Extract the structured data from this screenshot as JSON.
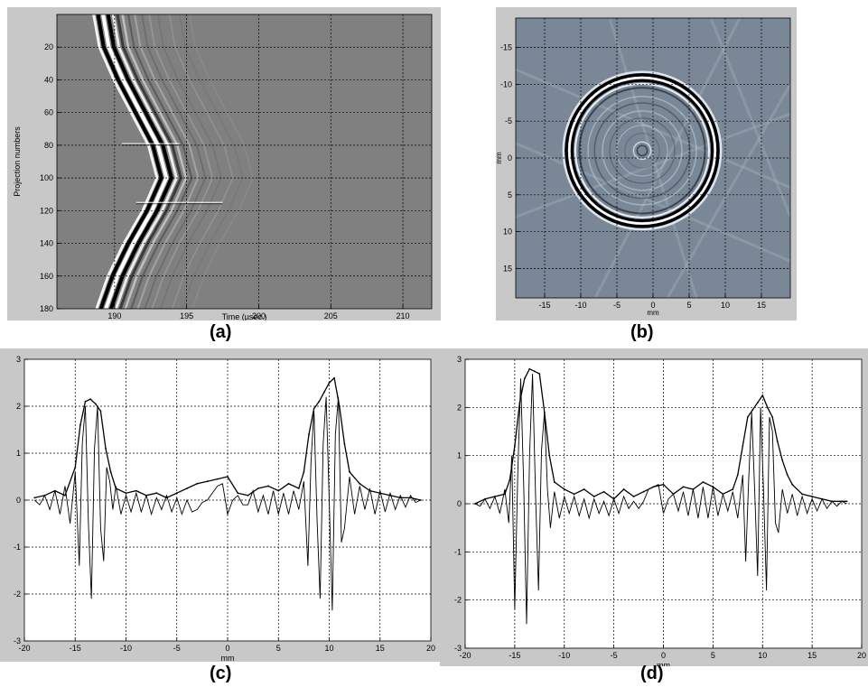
{
  "captions": {
    "a": "(a)",
    "b": "(b)",
    "c": "(c)",
    "d": "(d)"
  },
  "colors": {
    "frame": "#c8c8c8",
    "plot_bg_a": "#808080",
    "plot_bg_b": "#7a8796",
    "trace": "#000000",
    "grid": "#000000"
  },
  "chart_data": [
    {
      "id": "a",
      "type": "heatmap",
      "title": "",
      "xlabel": "Time (µsec.)",
      "ylabel": "Projection numbers",
      "xlim": [
        186,
        212
      ],
      "ylim": [
        0,
        180
      ],
      "y_inverted": true,
      "xticks": [
        190,
        195,
        200,
        205,
        210
      ],
      "yticks": [
        20,
        40,
        60,
        80,
        100,
        120,
        140,
        160,
        180
      ],
      "grid": true,
      "wavefront_center": {
        "y": [
          0,
          20,
          40,
          60,
          80,
          100,
          120,
          140,
          160,
          180
        ],
        "x": [
          189.2,
          189.6,
          190.6,
          191.8,
          193.0,
          193.6,
          192.6,
          191.3,
          190.2,
          189.4
        ]
      }
    },
    {
      "id": "b",
      "type": "heatmap",
      "title": "",
      "xlabel": "mm",
      "ylabel": "mm",
      "xlim": [
        -19,
        19
      ],
      "ylim": [
        -19,
        19
      ],
      "y_inverted": true,
      "xticks": [
        -15,
        -10,
        -5,
        0,
        5,
        10,
        15
      ],
      "yticks": [
        -15,
        -10,
        -5,
        0,
        5,
        10,
        15
      ],
      "grid": true,
      "ring_center": [
        -1.5,
        -1.0
      ],
      "ring_radii": [
        10.5,
        9.8,
        9.1,
        7.5,
        5.5,
        3.5,
        1.2
      ]
    },
    {
      "id": "c",
      "type": "line",
      "title": "",
      "xlabel": "mm",
      "ylabel": "",
      "xlim": [
        -20,
        20
      ],
      "ylim": [
        -3,
        3
      ],
      "xticks": [
        -20,
        -15,
        -10,
        -5,
        0,
        5,
        10,
        15,
        20
      ],
      "yticks": [
        -3,
        -2,
        -1,
        0,
        1,
        2,
        3
      ],
      "grid": true,
      "series": [
        {
          "x": [
            -19.0,
            -18.0,
            -17.0,
            -16.0,
            -15.0,
            -14.5,
            -14.0,
            -13.5,
            -13.0,
            -12.5,
            -12.0,
            -11.5,
            -11.0,
            -10.0,
            -9.0,
            -8.0,
            -7.0,
            -6.0,
            -5.0,
            -4.0,
            -3.0,
            -2.0,
            -1.0,
            0.0,
            1.0,
            2.0,
            3.0,
            4.0,
            5.0,
            6.0,
            7.0,
            7.5,
            8.0,
            8.5,
            9.0,
            9.5,
            10.0,
            10.5,
            11.0,
            11.5,
            12.0,
            13.0,
            14.0,
            15.0,
            16.0,
            17.0,
            18.0,
            19.0
          ],
          "y": [
            0.05,
            0.1,
            0.2,
            0.1,
            0.7,
            1.6,
            2.1,
            2.15,
            2.05,
            1.9,
            1.1,
            0.6,
            0.25,
            0.15,
            0.2,
            0.1,
            0.15,
            0.05,
            0.15,
            0.25,
            0.35,
            0.4,
            0.45,
            0.5,
            0.15,
            0.1,
            0.25,
            0.3,
            0.2,
            0.35,
            0.25,
            0.6,
            1.4,
            1.95,
            2.1,
            2.3,
            2.5,
            2.6,
            2.0,
            1.2,
            0.6,
            0.35,
            0.2,
            0.15,
            0.1,
            0.05,
            0.05,
            0.0
          ]
        },
        {
          "x": [
            -19.0,
            -18.5,
            -18.0,
            -17.5,
            -17.0,
            -16.5,
            -16.0,
            -15.5,
            -15.0,
            -14.6,
            -14.3,
            -14.0,
            -13.7,
            -13.4,
            -13.1,
            -12.8,
            -12.5,
            -12.2,
            -11.9,
            -11.6,
            -11.3,
            -11.0,
            -10.5,
            -10.0,
            -9.5,
            -9.0,
            -8.5,
            -8.0,
            -7.5,
            -7.0,
            -6.5,
            -6.0,
            -5.5,
            -5.0,
            -4.5,
            -4.0,
            -3.5,
            -3.0,
            -2.5,
            -2.0,
            -1.5,
            -1.0,
            -0.5,
            0.0,
            0.5,
            1.0,
            1.5,
            2.0,
            2.5,
            3.0,
            3.5,
            4.0,
            4.5,
            5.0,
            5.5,
            6.0,
            6.5,
            7.0,
            7.5,
            7.9,
            8.2,
            8.5,
            8.8,
            9.1,
            9.4,
            9.7,
            10.0,
            10.3,
            10.6,
            10.9,
            11.2,
            11.5,
            12.0,
            12.5,
            13.0,
            13.5,
            14.0,
            14.5,
            15.0,
            15.5,
            16.0,
            16.5,
            17.0,
            17.5,
            18.0,
            18.5,
            19.0
          ],
          "y": [
            0.0,
            -0.1,
            0.1,
            -0.2,
            0.2,
            -0.3,
            0.3,
            -0.5,
            0.6,
            -1.4,
            1.2,
            2.0,
            -0.5,
            -2.1,
            1.1,
            2.0,
            -0.6,
            -1.3,
            0.7,
            0.4,
            -0.2,
            0.3,
            -0.3,
            0.1,
            -0.25,
            0.15,
            -0.25,
            0.1,
            -0.3,
            0.05,
            -0.2,
            0.1,
            -0.25,
            0.05,
            -0.3,
            0.0,
            -0.25,
            -0.2,
            -0.05,
            0.0,
            0.15,
            0.3,
            0.35,
            -0.3,
            0.0,
            0.1,
            -0.1,
            -0.1,
            0.2,
            -0.25,
            0.1,
            -0.3,
            0.2,
            -0.3,
            0.15,
            -0.3,
            0.2,
            -0.2,
            0.4,
            -1.4,
            0.8,
            1.9,
            -0.4,
            -2.1,
            1.2,
            2.2,
            0.0,
            -2.35,
            1.4,
            2.2,
            -0.9,
            -0.6,
            0.5,
            -0.3,
            0.3,
            -0.2,
            0.25,
            -0.3,
            0.2,
            -0.25,
            0.15,
            -0.2,
            0.1,
            -0.15,
            0.1,
            -0.05,
            0.0
          ]
        }
      ]
    },
    {
      "id": "d",
      "type": "line",
      "title": "",
      "xlabel": "mm",
      "ylabel": "",
      "xlim": [
        -20,
        20
      ],
      "ylim": [
        -3,
        3
      ],
      "xticks": [
        -20,
        -15,
        -10,
        -5,
        0,
        5,
        10,
        15,
        20
      ],
      "yticks": [
        -3,
        -2,
        -1,
        0,
        1,
        2,
        3
      ],
      "grid": true,
      "series": [
        {
          "x": [
            -19.0,
            -18.0,
            -17.0,
            -16.0,
            -15.5,
            -15.0,
            -14.5,
            -14.0,
            -13.5,
            -13.0,
            -12.5,
            -12.0,
            -11.5,
            -11.0,
            -10.0,
            -9.0,
            -8.0,
            -7.0,
            -6.0,
            -5.0,
            -4.0,
            -3.0,
            -2.0,
            -1.0,
            0.0,
            1.0,
            2.0,
            3.0,
            4.0,
            5.0,
            6.0,
            7.0,
            7.5,
            8.0,
            8.5,
            9.0,
            9.5,
            10.0,
            10.5,
            11.0,
            11.5,
            12.0,
            12.5,
            13.0,
            14.0,
            15.0,
            16.0,
            17.0,
            18.0,
            18.5
          ],
          "y": [
            0.0,
            0.1,
            0.15,
            0.2,
            0.5,
            1.2,
            2.1,
            2.6,
            2.8,
            2.75,
            2.7,
            1.9,
            1.0,
            0.45,
            0.3,
            0.2,
            0.3,
            0.15,
            0.25,
            0.1,
            0.3,
            0.15,
            0.25,
            0.35,
            0.4,
            0.2,
            0.35,
            0.3,
            0.45,
            0.35,
            0.2,
            0.3,
            0.6,
            1.2,
            1.8,
            1.95,
            2.1,
            2.25,
            2.0,
            1.8,
            1.3,
            0.9,
            0.6,
            0.4,
            0.2,
            0.15,
            0.1,
            0.05,
            0.05,
            0.05
          ]
        },
        {
          "x": [
            -19.0,
            -18.5,
            -18.0,
            -17.5,
            -17.0,
            -16.5,
            -16.0,
            -15.6,
            -15.3,
            -15.0,
            -14.7,
            -14.4,
            -14.1,
            -13.8,
            -13.5,
            -13.2,
            -12.9,
            -12.6,
            -12.3,
            -12.0,
            -11.7,
            -11.4,
            -11.0,
            -10.5,
            -10.0,
            -9.5,
            -9.0,
            -8.5,
            -8.0,
            -7.5,
            -7.0,
            -6.5,
            -6.0,
            -5.5,
            -5.0,
            -4.5,
            -4.0,
            -3.5,
            -3.0,
            -2.5,
            -2.0,
            -1.5,
            -1.0,
            -0.5,
            0.0,
            0.5,
            1.0,
            1.5,
            2.0,
            2.5,
            3.0,
            3.5,
            4.0,
            4.5,
            5.0,
            5.5,
            6.0,
            6.5,
            7.0,
            7.5,
            8.0,
            8.3,
            8.6,
            8.9,
            9.2,
            9.5,
            9.8,
            10.1,
            10.4,
            10.7,
            11.0,
            11.3,
            11.6,
            12.0,
            12.5,
            13.0,
            13.5,
            14.0,
            14.5,
            15.0,
            15.5,
            16.0,
            16.5,
            17.0,
            17.5,
            18.0,
            18.5
          ],
          "y": [
            0.0,
            -0.05,
            0.1,
            -0.1,
            0.15,
            -0.2,
            0.3,
            -0.4,
            1.0,
            -2.2,
            0.6,
            2.6,
            0.4,
            -2.5,
            1.0,
            2.7,
            0.2,
            -1.8,
            1.1,
            1.9,
            0.3,
            -0.5,
            0.25,
            -0.3,
            0.15,
            -0.2,
            0.15,
            -0.25,
            0.1,
            -0.3,
            0.1,
            -0.2,
            0.05,
            -0.25,
            0.1,
            -0.2,
            0.15,
            -0.1,
            0.05,
            -0.1,
            0.05,
            0.3,
            0.35,
            0.4,
            -0.2,
            0.1,
            0.2,
            -0.15,
            0.25,
            -0.25,
            0.3,
            -0.3,
            0.35,
            -0.3,
            0.35,
            -0.25,
            0.2,
            -0.15,
            0.25,
            -0.3,
            0.6,
            -1.2,
            0.5,
            1.9,
            0.3,
            -1.5,
            2.0,
            0.3,
            -1.8,
            1.8,
            1.5,
            -0.4,
            -0.6,
            0.3,
            -0.2,
            0.2,
            -0.25,
            0.15,
            -0.2,
            0.1,
            -0.15,
            0.1,
            -0.1,
            0.05,
            -0.05,
            0.05,
            0.0
          ]
        }
      ]
    }
  ]
}
